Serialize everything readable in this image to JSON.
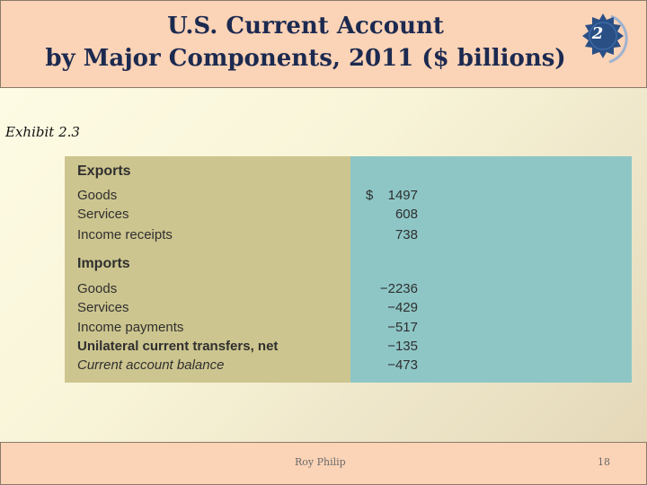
{
  "header": {
    "title_line1": "U.S. Current Account",
    "title_line2": "by Major Components, 2011 ($ billions)",
    "chapter_badge": "2"
  },
  "exhibit_label": "Exhibit 2.3",
  "table": {
    "currency_symbol": "$",
    "rows": [
      {
        "label": "Exports",
        "value": ""
      },
      {
        "label": "Goods",
        "value": "1497"
      },
      {
        "label": "Services",
        "value": "608"
      },
      {
        "label": "Income receipts",
        "value": "738"
      },
      {
        "label": "Imports",
        "value": ""
      },
      {
        "label": "Goods",
        "value": "−2236"
      },
      {
        "label": "Services",
        "value": "−429"
      },
      {
        "label": "Income payments",
        "value": "−517"
      },
      {
        "label": "Unilateral current transfers, net",
        "value": "−135"
      },
      {
        "label": "Current account balance",
        "value": "−473"
      }
    ]
  },
  "footer": {
    "author": "Roy Philip",
    "page_number": "18"
  },
  "colors": {
    "title_band": "#fbd3b6",
    "title_text": "#1c2a50",
    "label_column": "#cdc58f",
    "value_column": "#8ec6c6",
    "badge": "#2a4f85"
  }
}
